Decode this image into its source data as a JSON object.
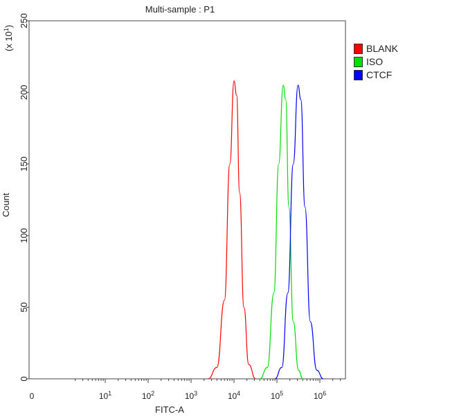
{
  "chart_data": {
    "type": "line",
    "title": "Multi-sample : P1",
    "xlabel": "FITC-A",
    "ylabel": "Count",
    "y_multiplier": "(x 10^1)",
    "xscale": "log",
    "xlim": [
      1,
      2000000
    ],
    "ylim": [
      0,
      250
    ],
    "x_ticks": [
      "0",
      "10^1",
      "10^2",
      "10^3",
      "10^4",
      "10^5",
      "10^6"
    ],
    "y_ticks": [
      0,
      50,
      100,
      150,
      200,
      250
    ],
    "legend_position": "top-right",
    "series": [
      {
        "name": "BLANK",
        "color": "#ff0000",
        "x": [
          2500,
          4000,
          6000,
          8000,
          10000,
          11500,
          13500,
          17000,
          22000,
          32000
        ],
        "y": [
          0,
          8,
          55,
          150,
          208,
          198,
          130,
          50,
          10,
          0
        ]
      },
      {
        "name": "ISO",
        "color": "#00dd00",
        "x": [
          40000,
          60000,
          85000,
          110000,
          140000,
          160000,
          190000,
          240000,
          320000,
          400000
        ],
        "y": [
          0,
          8,
          60,
          150,
          205,
          195,
          120,
          40,
          6,
          0
        ]
      },
      {
        "name": "CTCF",
        "color": "#0000ff",
        "x": [
          90000,
          130000,
          180000,
          240000,
          310000,
          360000,
          450000,
          600000,
          850000,
          1200000
        ],
        "y": [
          0,
          8,
          60,
          150,
          205,
          195,
          120,
          40,
          6,
          0
        ]
      }
    ]
  }
}
